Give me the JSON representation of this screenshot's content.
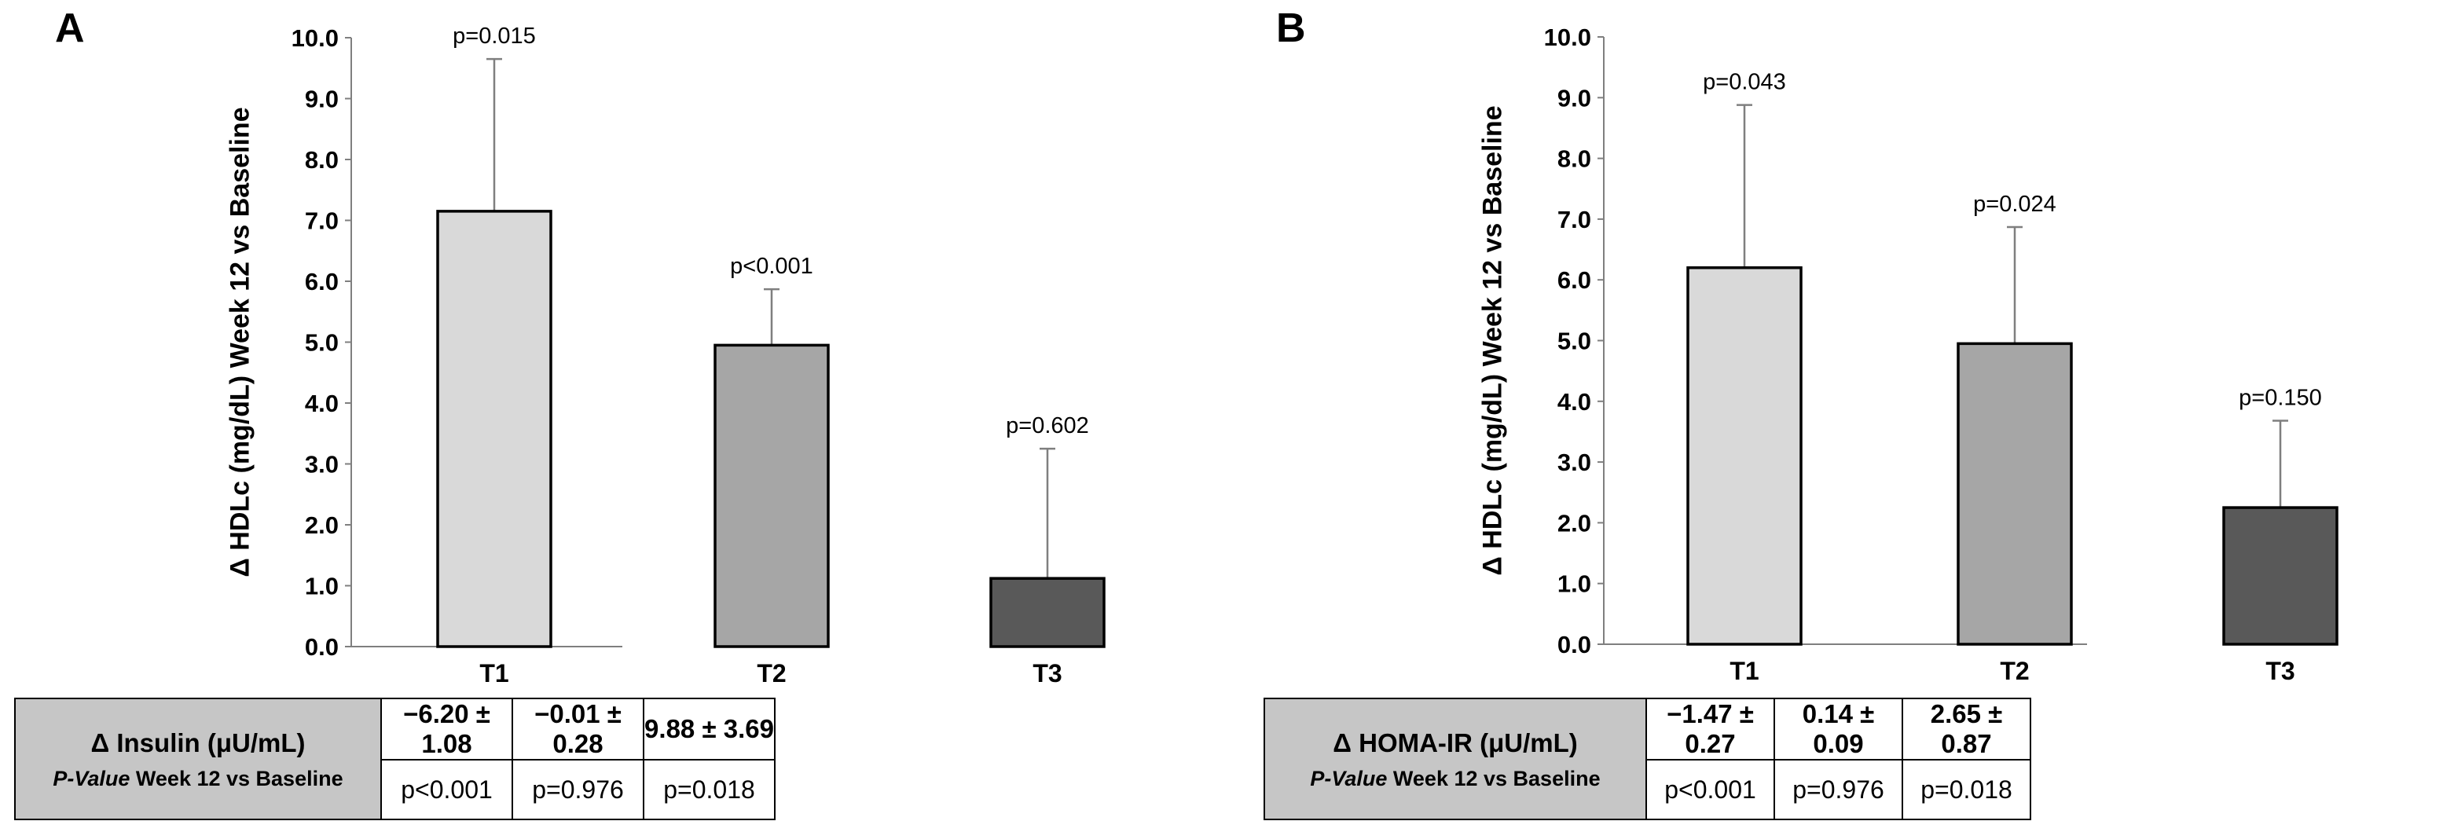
{
  "chart_data": [
    {
      "type": "bar",
      "panel": "A",
      "ylabel": "Δ HDLc (mg/dL) Week 12 vs Baseline",
      "ylim": [
        0,
        10
      ],
      "yticks": [
        "0.0",
        "1.0",
        "2.0",
        "3.0",
        "4.0",
        "5.0",
        "6.0",
        "7.0",
        "8.0",
        "9.0",
        "10.0"
      ],
      "categories": [
        "T1",
        "T2",
        "T3"
      ],
      "values": [
        7.15,
        4.95,
        1.12
      ],
      "error_upper": [
        9.65,
        5.87,
        3.25
      ],
      "p_labels": [
        "p=0.015",
        "p<0.001",
        "p=0.602"
      ],
      "bar_colors": [
        "#d9d9d9",
        "#a6a6a6",
        "#595959"
      ],
      "table": {
        "header_line1": "Δ Insulin (μU/mL)",
        "header_line2_italic": "P-Value",
        "header_line2_rest": " Week 12 vs Baseline",
        "values": [
          "−6.20 ± 1.08",
          "−0.01 ± 0.28",
          "9.88 ± 3.69"
        ],
        "pvalues": [
          "p<0.001",
          "p=0.976",
          "p=0.018"
        ]
      }
    },
    {
      "type": "bar",
      "panel": "B",
      "ylabel": "Δ HDLc (mg/dL) Week 12 vs Baseline",
      "ylim": [
        0,
        10
      ],
      "yticks": [
        "0.0",
        "1.0",
        "2.0",
        "3.0",
        "4.0",
        "5.0",
        "6.0",
        "7.0",
        "8.0",
        "9.0",
        "10.0"
      ],
      "categories": [
        "T1",
        "T2",
        "T3"
      ],
      "values": [
        6.2,
        4.95,
        2.25
      ],
      "error_upper": [
        8.88,
        6.87,
        3.68
      ],
      "p_labels": [
        "p=0.043",
        "p=0.024",
        "p=0.150"
      ],
      "bar_colors": [
        "#d9d9d9",
        "#a6a6a6",
        "#595959"
      ],
      "table": {
        "header_line1": "Δ HOMA-IR (μU/mL)",
        "header_line2_italic": "P-Value",
        "header_line2_rest": " Week 12 vs Baseline",
        "values": [
          "−1.47 ± 0.27",
          "0.14 ± 0.09",
          "2.65 ± 0.87"
        ],
        "pvalues": [
          "p<0.001",
          "p=0.976",
          "p=0.018"
        ]
      }
    }
  ]
}
